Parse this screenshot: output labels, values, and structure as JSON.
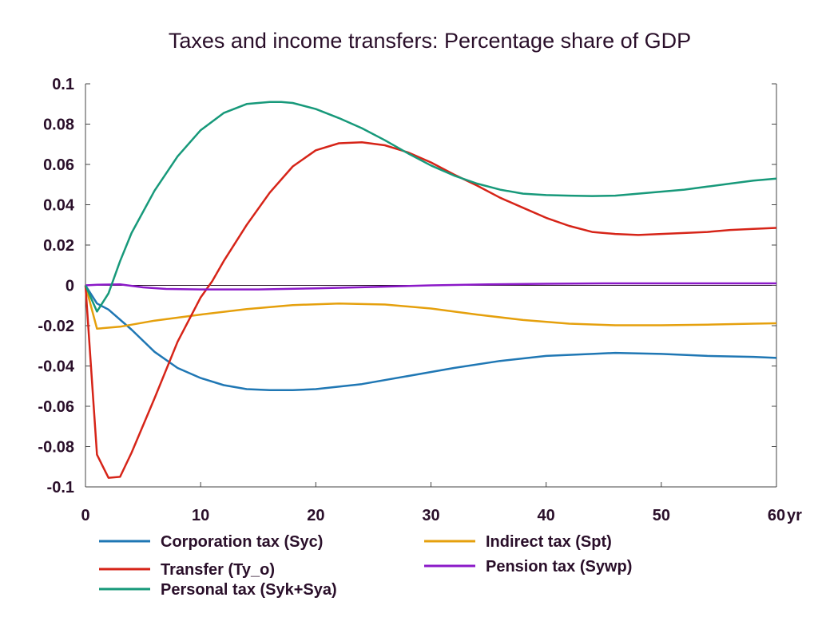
{
  "chart_data": {
    "type": "line",
    "title": "Taxes and income transfers: Percentage share of GDP",
    "xlabel": "",
    "ylabel": "",
    "x_unit_label": "yr",
    "xlim": [
      0,
      60
    ],
    "ylim": [
      -0.1,
      0.1
    ],
    "x_ticks": [
      0,
      10,
      20,
      30,
      40,
      50,
      60
    ],
    "x_tick_labels": [
      "0",
      "10",
      "20",
      "30",
      "40",
      "50",
      "60"
    ],
    "y_ticks": [
      0.1,
      0.08,
      0.06,
      0.04,
      0.02,
      0,
      -0.02,
      -0.04,
      -0.06,
      -0.08,
      -0.1
    ],
    "y_tick_labels": [
      "0.1",
      "0.08",
      "0.06",
      "0.04",
      "0.02",
      "0",
      "-0.02",
      "-0.04",
      "-0.06",
      "-0.08",
      "-0.1"
    ],
    "grid": false,
    "zero_line": true,
    "legend_position": "bottom",
    "series": [
      {
        "name": "Corporation tax (Syc)",
        "color": "#1f77b4",
        "x": [
          0,
          1,
          2,
          4,
          6,
          8,
          10,
          12,
          14,
          16,
          18,
          20,
          24,
          28,
          32,
          36,
          40,
          44,
          46,
          50,
          54,
          58,
          60
        ],
        "y": [
          0,
          -0.009,
          -0.012,
          -0.022,
          -0.033,
          -0.041,
          -0.046,
          -0.0495,
          -0.0515,
          -0.052,
          -0.052,
          -0.0515,
          -0.049,
          -0.045,
          -0.041,
          -0.0375,
          -0.035,
          -0.034,
          -0.0335,
          -0.034,
          -0.035,
          -0.0355,
          -0.036
        ]
      },
      {
        "name": "Indirect tax (Spt)",
        "color": "#e5a00d",
        "x": [
          0,
          1,
          2,
          3,
          6,
          10,
          14,
          18,
          22,
          26,
          30,
          34,
          38,
          42,
          46,
          50,
          54,
          58,
          60
        ],
        "y": [
          0,
          -0.0215,
          -0.021,
          -0.0205,
          -0.0175,
          -0.0145,
          -0.0118,
          -0.0098,
          -0.009,
          -0.0095,
          -0.0115,
          -0.0145,
          -0.0172,
          -0.019,
          -0.0198,
          -0.0198,
          -0.0195,
          -0.019,
          -0.0188
        ]
      },
      {
        "name": "Transfer (Ty_o)",
        "color": "#d62418",
        "x": [
          0,
          1,
          2,
          3,
          4,
          6,
          8,
          10,
          11,
          12,
          14,
          16,
          18,
          20,
          22,
          24,
          26,
          28,
          30,
          32,
          34,
          36,
          38,
          40,
          42,
          44,
          46,
          48,
          50,
          52,
          54,
          56,
          58,
          60
        ],
        "y": [
          0,
          -0.084,
          -0.0955,
          -0.095,
          -0.083,
          -0.056,
          -0.028,
          -0.006,
          0.002,
          0.012,
          0.03,
          0.046,
          0.059,
          0.067,
          0.0705,
          0.071,
          0.0695,
          0.066,
          0.061,
          0.055,
          0.0495,
          0.0435,
          0.0385,
          0.0335,
          0.0295,
          0.0265,
          0.0255,
          0.025,
          0.0255,
          0.026,
          0.0265,
          0.0275,
          0.028,
          0.0285
        ]
      },
      {
        "name": "Pension tax (Sywp)",
        "color": "#8b19c8",
        "x": [
          0,
          1,
          2,
          3,
          5,
          7,
          10,
          15,
          20,
          25,
          30,
          35,
          40,
          45,
          50,
          55,
          60
        ],
        "y": [
          0,
          0.0003,
          0.0004,
          0.0005,
          -0.001,
          -0.0018,
          -0.002,
          -0.002,
          -0.0015,
          -0.0008,
          0,
          0.0005,
          0.0008,
          0.001,
          0.001,
          0.001,
          0.001
        ]
      },
      {
        "name": "Personal tax (Syk+Sya)",
        "color": "#17997a",
        "x": [
          0,
          1,
          2,
          3,
          4,
          6,
          8,
          10,
          12,
          14,
          16,
          17,
          18,
          20,
          22,
          24,
          26,
          28,
          30,
          32,
          34,
          36,
          38,
          40,
          42,
          44,
          46,
          48,
          50,
          52,
          54,
          56,
          58,
          60
        ],
        "y": [
          0,
          -0.013,
          -0.004,
          0.012,
          0.026,
          0.047,
          0.064,
          0.077,
          0.0855,
          0.09,
          0.091,
          0.091,
          0.0905,
          0.0875,
          0.083,
          0.078,
          0.072,
          0.0655,
          0.0595,
          0.0545,
          0.0505,
          0.0475,
          0.0455,
          0.0448,
          0.0445,
          0.0443,
          0.0445,
          0.0455,
          0.0465,
          0.0475,
          0.049,
          0.0505,
          0.052,
          0.053
        ]
      }
    ]
  }
}
